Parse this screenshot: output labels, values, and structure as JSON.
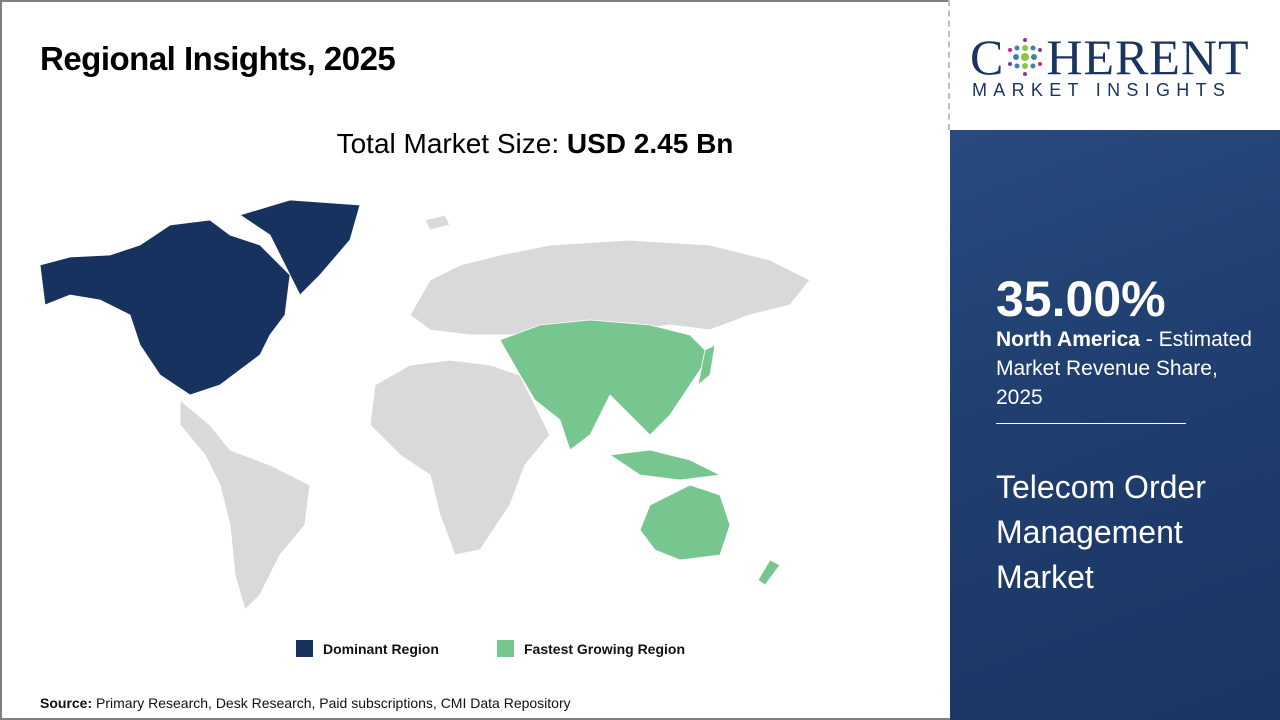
{
  "title": "Regional Insights, 2025",
  "total": {
    "label": "Total Market Size:",
    "value": "USD 2.45 Bn"
  },
  "legend": [
    {
      "label": "Dominant Region",
      "color": "#17325e"
    },
    {
      "label": "Fastest Growing Region",
      "color": "#77c68f"
    }
  ],
  "source": {
    "label": "Source:",
    "text": "Primary Research, Desk Research, Paid subscriptions, CMI Data Repository"
  },
  "logo": {
    "main_left": "C",
    "main_right": "HERENT",
    "sub": "MARKET INSIGHTS"
  },
  "highlight": {
    "percent": "35.00%",
    "region": "North America",
    "desc": " - Estimated Market Revenue Share, 2025"
  },
  "market_name": "Telecom Order Management Market",
  "map": {
    "dominant_region": "North America",
    "fastest_growing_region": "Asia Pacific",
    "other_color": "#d9d9d9"
  }
}
